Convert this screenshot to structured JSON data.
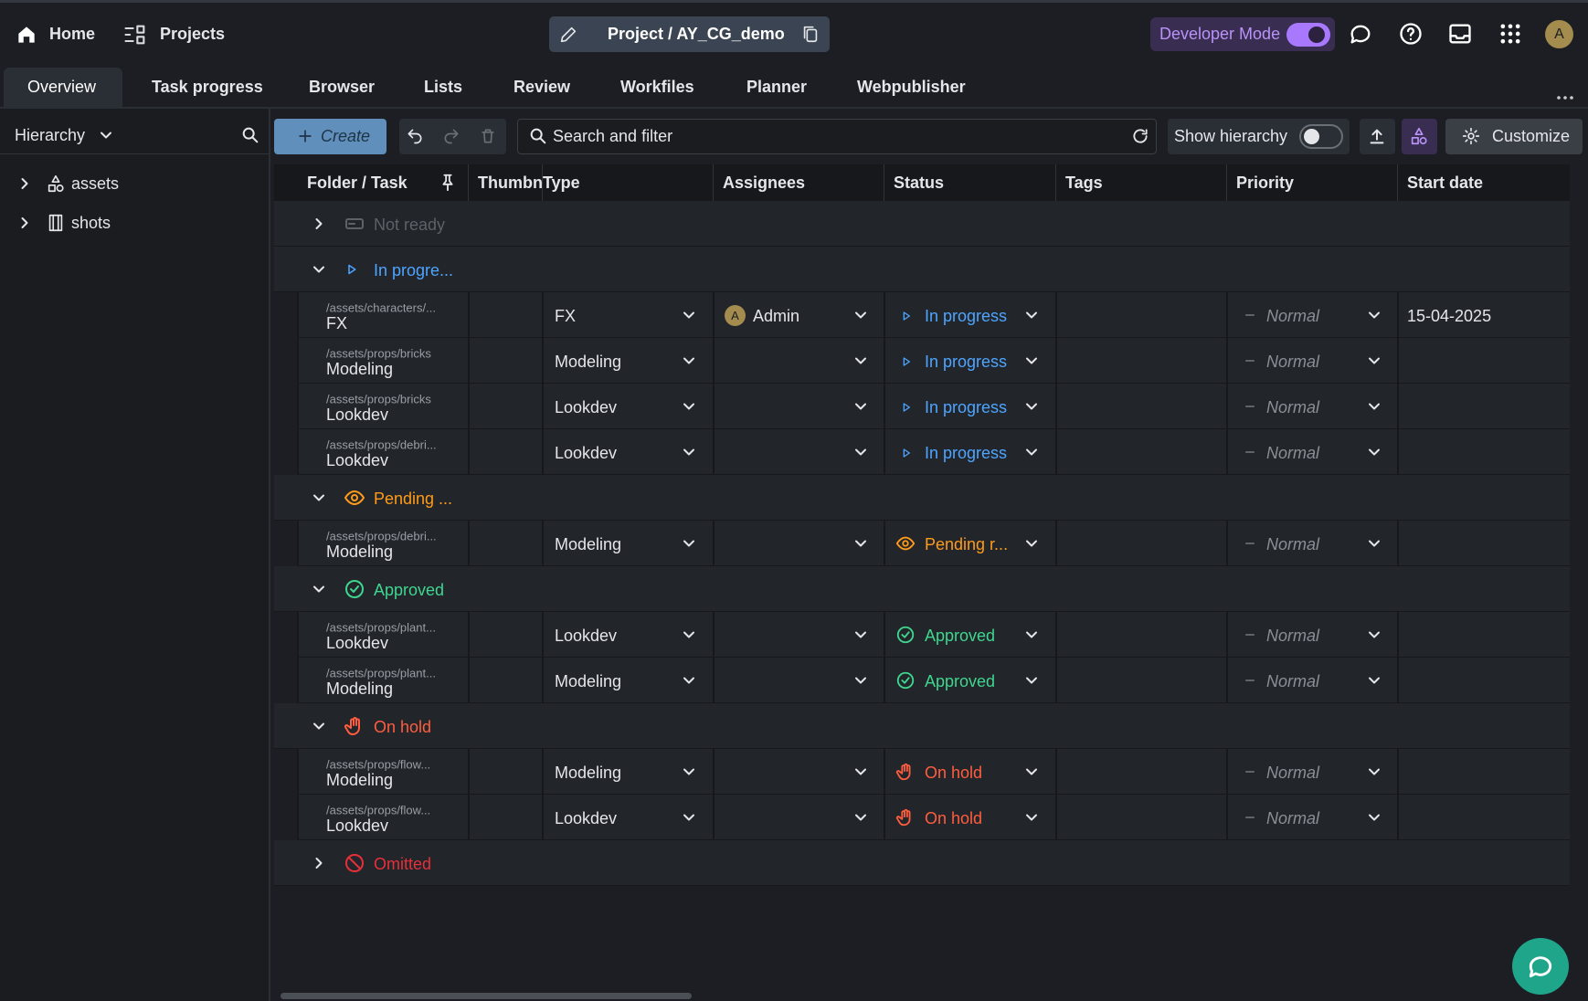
{
  "header": {
    "home": "Home",
    "projects": "Projects",
    "project": "Project / AY_CG_demo",
    "developer_mode": "Developer Mode",
    "avatar": "A"
  },
  "tabs": [
    "Overview",
    "Task progress",
    "Browser",
    "Lists",
    "Review",
    "Workfiles",
    "Planner",
    "Webpublisher"
  ],
  "active_tab": 0,
  "sidebar": {
    "dropdown": "Hierarchy",
    "items": [
      "assets",
      "shots"
    ]
  },
  "toolbar": {
    "create": "Create",
    "search": "Search and filter",
    "show_hierarchy": "Show hierarchy",
    "customize": "Customize"
  },
  "table": {
    "columns": [
      "Folder / Task",
      "Thumbn",
      "Type",
      "Assignees",
      "Status",
      "Tags",
      "Priority",
      "Start date"
    ],
    "groups": [
      {
        "label": "Not ready",
        "color": "#5d6168",
        "expanded": false,
        "rows": []
      },
      {
        "label": "In progre...",
        "color": "#4ea5ff",
        "expanded": true,
        "rows": [
          {
            "path": "/assets/characters/...",
            "task": "FX",
            "type": "FX",
            "assignee_initial": "A",
            "assignee": "Admin",
            "status": "In progress",
            "priority": "Normal",
            "start_date": "15-04-2025"
          },
          {
            "path": "/assets/props/bricks",
            "task": "Modeling",
            "type": "Modeling",
            "status": "In progress",
            "priority": "Normal"
          },
          {
            "path": "/assets/props/bricks",
            "task": "Lookdev",
            "type": "Lookdev",
            "status": "In progress",
            "priority": "Normal"
          },
          {
            "path": "/assets/props/debri...",
            "task": "Lookdev",
            "type": "Lookdev",
            "status": "In progress",
            "priority": "Normal"
          }
        ]
      },
      {
        "label": "Pending ...",
        "color": "#ff9b1a",
        "expanded": true,
        "rows": [
          {
            "path": "/assets/props/debri...",
            "task": "Modeling",
            "type": "Modeling",
            "status": "Pending r...",
            "priority": "Normal"
          }
        ]
      },
      {
        "label": "Approved",
        "color": "#3fd68f",
        "expanded": true,
        "rows": [
          {
            "path": "/assets/props/plant...",
            "task": "Lookdev",
            "type": "Lookdev",
            "status": "Approved",
            "priority": "Normal"
          },
          {
            "path": "/assets/props/plant...",
            "task": "Modeling",
            "type": "Modeling",
            "status": "Approved",
            "priority": "Normal"
          }
        ]
      },
      {
        "label": "On hold",
        "color": "#ff5d3f",
        "expanded": true,
        "rows": [
          {
            "path": "/assets/props/flow...",
            "task": "Modeling",
            "type": "Modeling",
            "status": "On hold",
            "priority": "Normal"
          },
          {
            "path": "/assets/props/flow...",
            "task": "Lookdev",
            "type": "Lookdev",
            "status": "On hold",
            "priority": "Normal"
          }
        ]
      },
      {
        "label": "Omitted",
        "color": "#e5303a",
        "expanded": false,
        "rows": []
      }
    ]
  }
}
